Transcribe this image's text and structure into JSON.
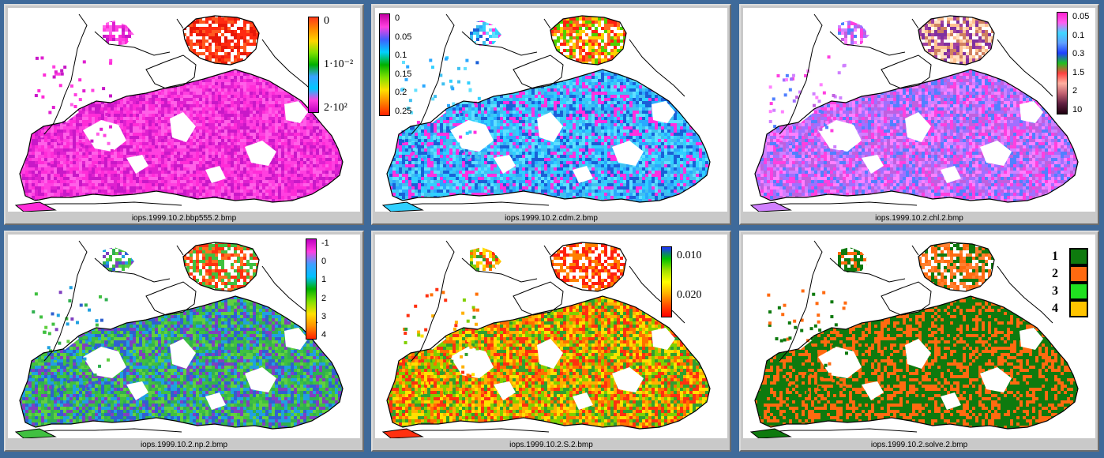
{
  "panels": [
    {
      "filename": "iops.1999.10.2.bbp555.2.bmp",
      "legend_type": "gradient",
      "gradient": [
        "#ff3a1a",
        "#ff8a00",
        "#ffd400",
        "#7ee000",
        "#00b000",
        "#3aa0ff",
        "#00c8ff",
        "#ff40e0",
        "#c000c0"
      ],
      "ticks": [
        "0",
        "1·10⁻²",
        "2·10²"
      ],
      "palette": [
        "#ff2cd8",
        "#e020d0",
        "#ff60e8",
        "#c818c8",
        "#ff40e0"
      ],
      "north_palette": [
        "#ff2a10",
        "#ff5a20",
        "#e81808",
        "#ffffff"
      ]
    },
    {
      "filename": "iops.1999.10.2.cdm.2.bmp",
      "legend_type": "gradient",
      "gradient": [
        "#c000a0",
        "#ff40e0",
        "#4060ff",
        "#00d0ff",
        "#00b000",
        "#80e000",
        "#ffe000",
        "#ff8000",
        "#ff2000"
      ],
      "ticks": [
        "0",
        "0.05",
        "0.1",
        "0.15",
        "0.2",
        "0.25"
      ],
      "palette": [
        "#30d0ff",
        "#60e0ff",
        "#2aa8ff",
        "#ff30e0",
        "#1a60d8",
        "#40c0f0"
      ],
      "north_palette": [
        "#ff2010",
        "#ff6a20",
        "#50d000",
        "#ffd000",
        "#ffffff"
      ]
    },
    {
      "filename": "iops.1999.10.2.chl.2.bmp",
      "legend_type": "gradient",
      "gradient": [
        "#ff20d0",
        "#ff60f0",
        "#40d8ff",
        "#60a0ff",
        "#2040ff",
        "#20c020",
        "#ff4040",
        "#ffb0a0",
        "#c06070",
        "#602040",
        "#200010"
      ],
      "ticks": [
        "0.05",
        "0.1",
        "0.3",
        "1.5",
        "2",
        "10"
      ],
      "palette": [
        "#d080ff",
        "#a070ff",
        "#ff40e0",
        "#5080ff",
        "#c060e0",
        "#ff80ff"
      ],
      "north_palette": [
        "#ffc090",
        "#d08060",
        "#a040a0",
        "#ffe0c0",
        "#8030a0",
        "#ffffff"
      ]
    },
    {
      "filename": "iops.1999.10.2.np.2.bmp",
      "legend_type": "gradient",
      "gradient": [
        "#c000c0",
        "#ff40e0",
        "#40a0ff",
        "#00c0ff",
        "#00b000",
        "#80e000",
        "#ffe000",
        "#ff9000",
        "#ff2000"
      ],
      "ticks": [
        "-1",
        "0",
        "1",
        "2",
        "3",
        "4"
      ],
      "palette": [
        "#40c040",
        "#20a0e0",
        "#3060d0",
        "#60d040",
        "#8040c0",
        "#30b050"
      ],
      "north_palette": [
        "#ff3010",
        "#40c040",
        "#ff7020",
        "#ffffff"
      ]
    },
    {
      "filename": "iops.1999.10.2.S.2.bmp",
      "legend_type": "gradient",
      "gradient": [
        "#2030ff",
        "#00c000",
        "#a0e000",
        "#ffff00",
        "#ffb000",
        "#ff5000",
        "#ff0000"
      ],
      "ticks": [
        "0.010",
        "0.020"
      ],
      "palette": [
        "#ff3010",
        "#ffe000",
        "#ffb000",
        "#80d000",
        "#ff7000",
        "#30a030"
      ],
      "north_palette": [
        "#ff2010",
        "#ff8000",
        "#ffffff"
      ]
    },
    {
      "filename": "iops.1999.10.2.solve.2.bmp",
      "legend_type": "classes",
      "classes": [
        {
          "label": "1",
          "color": "#0e7a0e"
        },
        {
          "label": "2",
          "color": "#ff6a10"
        },
        {
          "label": "3",
          "color": "#20e020"
        },
        {
          "label": "4",
          "color": "#ffc400"
        }
      ],
      "palette": [
        "#0e7a0e",
        "#ff6a10",
        "#0e7a0e",
        "#ff6a10",
        "#0e7a0e"
      ],
      "north_palette": [
        "#ff8030",
        "#ff6a10",
        "#0e7a0e",
        "#ffffff"
      ]
    }
  ],
  "colors": {
    "desktop": "#3f6a9a",
    "window": "#c9c9c9",
    "land": "#ffffff",
    "coast": "#000000"
  }
}
